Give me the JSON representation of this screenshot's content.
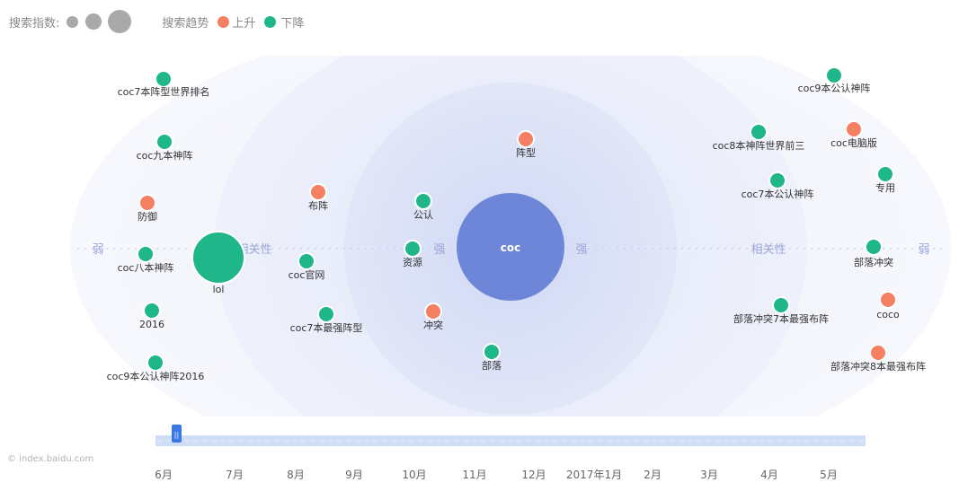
{
  "legend": {
    "index_label": "搜索指数:",
    "trend_label": "搜索趋势",
    "up_label": "上升",
    "down_label": "下降",
    "colors": {
      "up": "#f47f63",
      "down": "#1fb68a",
      "index": "#a9a9a9"
    }
  },
  "chart_data": {
    "type": "scatter",
    "center": {
      "label": "coc",
      "color": "#6e86d7"
    },
    "zone_labels": {
      "weak": "弱",
      "related": "相关性",
      "strong": "强"
    },
    "nodes": [
      {
        "label": "coc7本阵型世界排名",
        "trend": "down"
      },
      {
        "label": "coc九本神阵",
        "trend": "down"
      },
      {
        "label": "防御",
        "trend": "up"
      },
      {
        "label": "coc八本神阵",
        "trend": "down"
      },
      {
        "label": "2016",
        "trend": "down"
      },
      {
        "label": "coc9本公认神阵2016",
        "trend": "down"
      },
      {
        "label": "lol",
        "trend": "down"
      },
      {
        "label": "布阵",
        "trend": "up"
      },
      {
        "label": "coc官网",
        "trend": "down"
      },
      {
        "label": "coc7本最强阵型",
        "trend": "down"
      },
      {
        "label": "公认",
        "trend": "down"
      },
      {
        "label": "资源",
        "trend": "down"
      },
      {
        "label": "冲突",
        "trend": "up"
      },
      {
        "label": "阵型",
        "trend": "up"
      },
      {
        "label": "部落",
        "trend": "down"
      },
      {
        "label": "coc9本公认神阵",
        "trend": "down"
      },
      {
        "label": "coc电脑版",
        "trend": "up"
      },
      {
        "label": "coc8本神阵世界前三",
        "trend": "down"
      },
      {
        "label": "专用",
        "trend": "down"
      },
      {
        "label": "coc7本公认神阵",
        "trend": "down"
      },
      {
        "label": "部落冲突",
        "trend": "down"
      },
      {
        "label": "coco",
        "trend": "up"
      },
      {
        "label": "部落冲突7本最强布阵",
        "trend": "down"
      },
      {
        "label": "部落冲突8本最强布阵",
        "trend": "up"
      }
    ]
  },
  "timeline": {
    "months": [
      "6月",
      "7月",
      "8月",
      "9月",
      "10月",
      "11月",
      "12月",
      "2017年1月",
      "2月",
      "3月",
      "4月",
      "5月"
    ],
    "handle_label": "||"
  },
  "watermark": "© index.baidu.com"
}
